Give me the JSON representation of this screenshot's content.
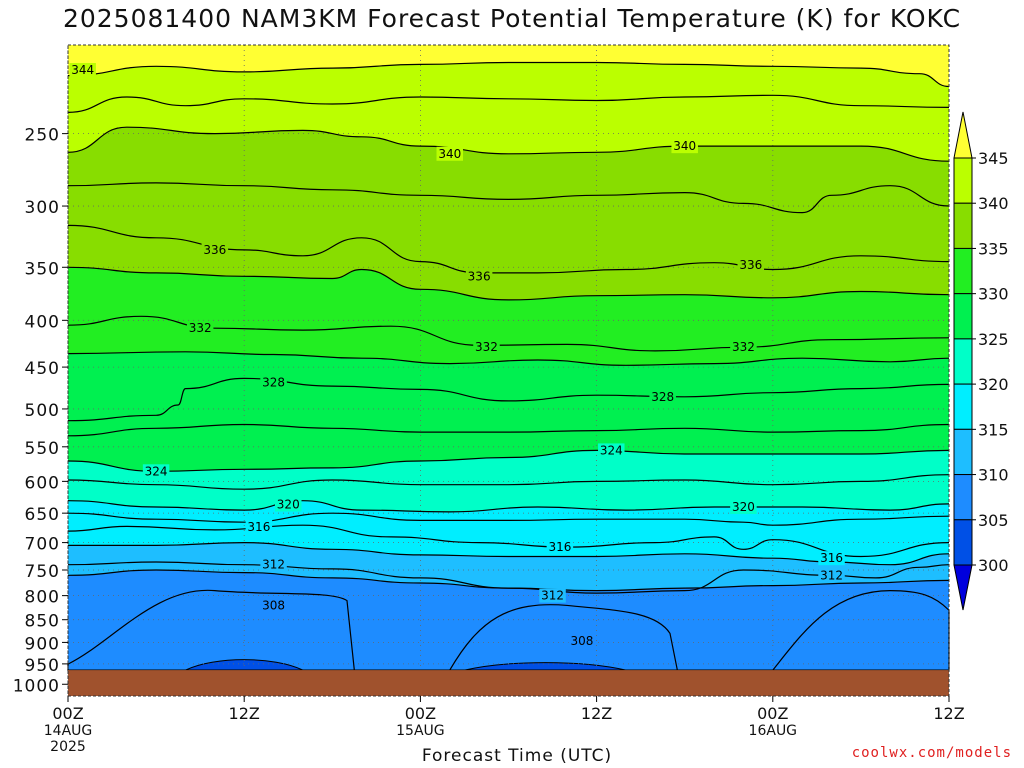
{
  "chart_data": {
    "type": "heatmap",
    "title": "2025081400 NAM3KM Forecast Potential Temperature (K) for KOKC",
    "xlabel": "Forecast Time (UTC)",
    "ylabel": "",
    "x_ticks": [
      {
        "hour": 0,
        "lines": [
          "00Z",
          "14AUG",
          "2025"
        ]
      },
      {
        "hour": 12,
        "lines": [
          "12Z"
        ]
      },
      {
        "hour": 24,
        "lines": [
          "00Z",
          "15AUG"
        ]
      },
      {
        "hour": 36,
        "lines": [
          "12Z"
        ]
      },
      {
        "hour": 48,
        "lines": [
          "00Z",
          "16AUG"
        ]
      },
      {
        "hour": 60,
        "lines": [
          "12Z"
        ]
      }
    ],
    "xlim": [
      0,
      60
    ],
    "y_ticks": [
      250,
      300,
      350,
      400,
      450,
      500,
      550,
      600,
      650,
      700,
      750,
      800,
      850,
      900,
      950,
      1000
    ],
    "ylim": [
      200,
      1030
    ],
    "y_scale": "log-pressure (hPa, inverted)",
    "grid": "dotted",
    "colorbar": {
      "ticks": [
        345,
        340,
        335,
        330,
        325,
        320,
        315,
        310,
        305,
        300
      ],
      "levels": [
        300,
        305,
        310,
        315,
        320,
        325,
        330,
        335,
        340,
        345
      ],
      "colors": [
        "#0000dd",
        "#0050e6",
        "#1e8cff",
        "#1ebeff",
        "#00eeff",
        "#00ffc8",
        "#00f050",
        "#22ee22",
        "#88dd00",
        "#bbff00",
        "#ffff33"
      ]
    },
    "terrain_color": "#a0522d",
    "surface_pressure_hpa": 965,
    "contour_labels": [
      {
        "value": "344",
        "hour": 1.0,
        "p": 213
      },
      {
        "value": "340",
        "hour": 26.0,
        "p": 263
      },
      {
        "value": "340",
        "hour": 42.0,
        "p": 258
      },
      {
        "value": "336",
        "hour": 10.0,
        "p": 335
      },
      {
        "value": "336",
        "hour": 28.0,
        "p": 358
      },
      {
        "value": "336",
        "hour": 46.5,
        "p": 348
      },
      {
        "value": "332",
        "hour": 9.0,
        "p": 408
      },
      {
        "value": "332",
        "hour": 28.5,
        "p": 428
      },
      {
        "value": "332",
        "hour": 46.0,
        "p": 428
      },
      {
        "value": "328",
        "hour": 14.0,
        "p": 468
      },
      {
        "value": "328",
        "hour": 40.5,
        "p": 485
      },
      {
        "value": "324",
        "hour": 6.0,
        "p": 585
      },
      {
        "value": "324",
        "hour": 37.0,
        "p": 555
      },
      {
        "value": "320",
        "hour": 15.0,
        "p": 636
      },
      {
        "value": "320",
        "hour": 46.0,
        "p": 640
      },
      {
        "value": "316",
        "hour": 13.0,
        "p": 673
      },
      {
        "value": "316",
        "hour": 33.5,
        "p": 708
      },
      {
        "value": "316",
        "hour": 52.0,
        "p": 728
      },
      {
        "value": "312",
        "hour": 14.0,
        "p": 740
      },
      {
        "value": "312",
        "hour": 33.0,
        "p": 800
      },
      {
        "value": "312",
        "hour": 52.0,
        "p": 760
      },
      {
        "value": "308",
        "hour": 14.0,
        "p": 820
      },
      {
        "value": "308",
        "hour": 35.0,
        "p": 897
      }
    ],
    "contour_lines": [
      {
        "value": 344,
        "points": [
          [
            0,
            216
          ],
          [
            6,
            211
          ],
          [
            12,
            214
          ],
          [
            18,
            212
          ],
          [
            24,
            210
          ],
          [
            30,
            209
          ],
          [
            36,
            209
          ],
          [
            42,
            210
          ],
          [
            48,
            211
          ],
          [
            54,
            212
          ],
          [
            58,
            215
          ],
          [
            60,
            222
          ]
        ]
      },
      {
        "value": 342,
        "points": [
          [
            0,
            237
          ],
          [
            4,
            228
          ],
          [
            8,
            233
          ],
          [
            12,
            229
          ],
          [
            18,
            232
          ],
          [
            24,
            228
          ],
          [
            30,
            229
          ],
          [
            36,
            230
          ],
          [
            42,
            228
          ],
          [
            48,
            227
          ],
          [
            54,
            233
          ],
          [
            60,
            234
          ]
        ]
      },
      {
        "value": 340,
        "points": [
          [
            0,
            262
          ],
          [
            4,
            246
          ],
          [
            10,
            250
          ],
          [
            16,
            248
          ],
          [
            20,
            252
          ],
          [
            24,
            258
          ],
          [
            30,
            263
          ],
          [
            36,
            262
          ],
          [
            42,
            258
          ],
          [
            48,
            258
          ],
          [
            54,
            258
          ],
          [
            60,
            268
          ]
        ]
      },
      {
        "value": 338,
        "points": [
          [
            0,
            285
          ],
          [
            6,
            283
          ],
          [
            12,
            285
          ],
          [
            18,
            288
          ],
          [
            24,
            292
          ],
          [
            30,
            295
          ],
          [
            36,
            292
          ],
          [
            42,
            290
          ],
          [
            46,
            298
          ],
          [
            50,
            305
          ],
          [
            52,
            292
          ],
          [
            56,
            285
          ],
          [
            60,
            300
          ]
        ]
      },
      {
        "value": 336,
        "points": [
          [
            0,
            315
          ],
          [
            6,
            325
          ],
          [
            12,
            335
          ],
          [
            16,
            340
          ],
          [
            20,
            325
          ],
          [
            24,
            345
          ],
          [
            28,
            355
          ],
          [
            32,
            355
          ],
          [
            38,
            352
          ],
          [
            44,
            346
          ],
          [
            48,
            352
          ],
          [
            54,
            340
          ],
          [
            60,
            345
          ]
        ]
      },
      {
        "value": 334,
        "points": [
          [
            0,
            350
          ],
          [
            6,
            355
          ],
          [
            12,
            358
          ],
          [
            18,
            360
          ],
          [
            20,
            352
          ],
          [
            24,
            370
          ],
          [
            30,
            380
          ],
          [
            36,
            376
          ],
          [
            42,
            375
          ],
          [
            48,
            378
          ],
          [
            54,
            372
          ],
          [
            60,
            375
          ]
        ]
      },
      {
        "value": 332,
        "points": [
          [
            0,
            405
          ],
          [
            5,
            396
          ],
          [
            10,
            408
          ],
          [
            16,
            410
          ],
          [
            22,
            406
          ],
          [
            28,
            426
          ],
          [
            34,
            425
          ],
          [
            40,
            432
          ],
          [
            46,
            428
          ],
          [
            52,
            420
          ],
          [
            60,
            418
          ]
        ]
      },
      {
        "value": 330,
        "points": [
          [
            0,
            435
          ],
          [
            8,
            433
          ],
          [
            14,
            436
          ],
          [
            20,
            440
          ],
          [
            26,
            446
          ],
          [
            32,
            442
          ],
          [
            38,
            448
          ],
          [
            44,
            446
          ],
          [
            50,
            440
          ],
          [
            56,
            444
          ],
          [
            60,
            440
          ]
        ]
      },
      {
        "value": 328,
        "points": [
          [
            0,
            515
          ],
          [
            6,
            508
          ],
          [
            7.5,
            495
          ],
          [
            8,
            475
          ],
          [
            12,
            463
          ],
          [
            18,
            472
          ],
          [
            24,
            476
          ],
          [
            30,
            490
          ],
          [
            36,
            483
          ],
          [
            42,
            485
          ],
          [
            48,
            480
          ],
          [
            54,
            475
          ],
          [
            60,
            470
          ]
        ]
      },
      {
        "value": 326,
        "points": [
          [
            0,
            535
          ],
          [
            6,
            525
          ],
          [
            12,
            520
          ],
          [
            18,
            525
          ],
          [
            24,
            530
          ],
          [
            30,
            530
          ],
          [
            36,
            528
          ],
          [
            42,
            525
          ],
          [
            48,
            530
          ],
          [
            54,
            528
          ],
          [
            60,
            520
          ]
        ]
      },
      {
        "value": 324,
        "points": [
          [
            0,
            570
          ],
          [
            6,
            585
          ],
          [
            12,
            582
          ],
          [
            18,
            580
          ],
          [
            24,
            570
          ],
          [
            30,
            565
          ],
          [
            36,
            555
          ],
          [
            42,
            560
          ],
          [
            48,
            560
          ],
          [
            54,
            560
          ],
          [
            60,
            555
          ]
        ]
      },
      {
        "value": 322,
        "points": [
          [
            0,
            598
          ],
          [
            6,
            605
          ],
          [
            12,
            612
          ],
          [
            18,
            598
          ],
          [
            24,
            605
          ],
          [
            30,
            605
          ],
          [
            36,
            600
          ],
          [
            42,
            598
          ],
          [
            48,
            605
          ],
          [
            54,
            600
          ],
          [
            60,
            590
          ]
        ]
      },
      {
        "value": 320,
        "points": [
          [
            0,
            630
          ],
          [
            6,
            640
          ],
          [
            12,
            645
          ],
          [
            16,
            630
          ],
          [
            20,
            645
          ],
          [
            26,
            648
          ],
          [
            32,
            640
          ],
          [
            38,
            645
          ],
          [
            44,
            640
          ],
          [
            50,
            640
          ],
          [
            56,
            645
          ],
          [
            60,
            635
          ]
        ]
      },
      {
        "value": 318,
        "points": [
          [
            0,
            650
          ],
          [
            6,
            660
          ],
          [
            12,
            665
          ],
          [
            18,
            650
          ],
          [
            24,
            662
          ],
          [
            30,
            662
          ],
          [
            36,
            660
          ],
          [
            42,
            660
          ],
          [
            46,
            665
          ],
          [
            48,
            670
          ],
          [
            54,
            660
          ],
          [
            60,
            655
          ]
        ]
      },
      {
        "value": 316,
        "points": [
          [
            0,
            680
          ],
          [
            4,
            672
          ],
          [
            10,
            678
          ],
          [
            16,
            670
          ],
          [
            22,
            690
          ],
          [
            28,
            700
          ],
          [
            34,
            708
          ],
          [
            40,
            700
          ],
          [
            44,
            690
          ],
          [
            46,
            712
          ],
          [
            48,
            695
          ],
          [
            54,
            725
          ],
          [
            60,
            700
          ]
        ]
      },
      {
        "value": 314,
        "points": [
          [
            0,
            705
          ],
          [
            6,
            705
          ],
          [
            12,
            700
          ],
          [
            18,
            712
          ],
          [
            24,
            722
          ],
          [
            30,
            725
          ],
          [
            36,
            725
          ],
          [
            42,
            720
          ],
          [
            48,
            728
          ],
          [
            52,
            735
          ],
          [
            56,
            740
          ],
          [
            60,
            720
          ]
        ]
      },
      {
        "value": 312,
        "points": [
          [
            0,
            740
          ],
          [
            6,
            735
          ],
          [
            12,
            740
          ],
          [
            18,
            748
          ],
          [
            24,
            765
          ],
          [
            30,
            785
          ],
          [
            36,
            795
          ],
          [
            42,
            790
          ],
          [
            46,
            750
          ],
          [
            52,
            760
          ],
          [
            55,
            765
          ],
          [
            58,
            745
          ],
          [
            60,
            740
          ]
        ]
      },
      {
        "value": 310,
        "points": [
          [
            0,
            760
          ],
          [
            6,
            750
          ],
          [
            12,
            755
          ],
          [
            18,
            765
          ],
          [
            24,
            775
          ],
          [
            30,
            785
          ],
          [
            36,
            790
          ],
          [
            42,
            785
          ],
          [
            48,
            780
          ],
          [
            54,
            775
          ],
          [
            60,
            770
          ]
        ]
      }
    ]
  }
}
